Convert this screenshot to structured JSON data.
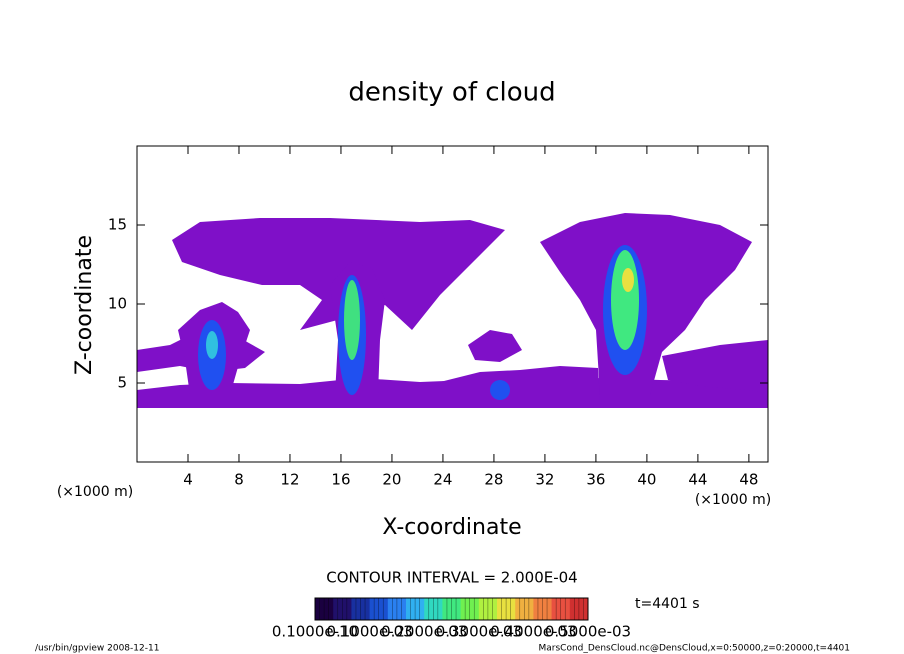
{
  "chart_data": {
    "type": "contour",
    "title": "density of cloud",
    "x_label": "X-coordinate",
    "y_label": "Z-coordinate",
    "x_unit_label": "(×1000 m)",
    "y_unit_label": "(×1000 m)",
    "xlim": [
      0,
      49.5
    ],
    "ylim": [
      0,
      20
    ],
    "xticks": [
      4,
      8,
      12,
      16,
      20,
      24,
      28,
      32,
      36,
      40,
      44,
      48
    ],
    "yticks": [
      5,
      10,
      15
    ],
    "fill_color": "#7f10c8",
    "contour_interval": "CONTOUR INTERVAL = 2.000E-04",
    "time_label": "t=4401 s",
    "colorbar_colors": [
      "#1a0040",
      "#20106a",
      "#1830a0",
      "#1a50d0",
      "#2a80f0",
      "#30b0f0",
      "#30d8c0",
      "#40e880",
      "#70f050",
      "#b0f040",
      "#e8e040",
      "#f0b040",
      "#f08040",
      "#e85040",
      "#d03030"
    ],
    "colorbar_labels": [
      "0.1000e-10",
      "0.1000e-03",
      "0.2000e-03",
      "0.3000e-03",
      "0.4000e-03",
      "0.5000e-03"
    ],
    "footer_left": "/usr/bin/gpview   2008-12-11",
    "footer_right": "MarsCond_DensCloud.nc@DensCloud,x=0:50000,z=0:20000,t=4401"
  }
}
